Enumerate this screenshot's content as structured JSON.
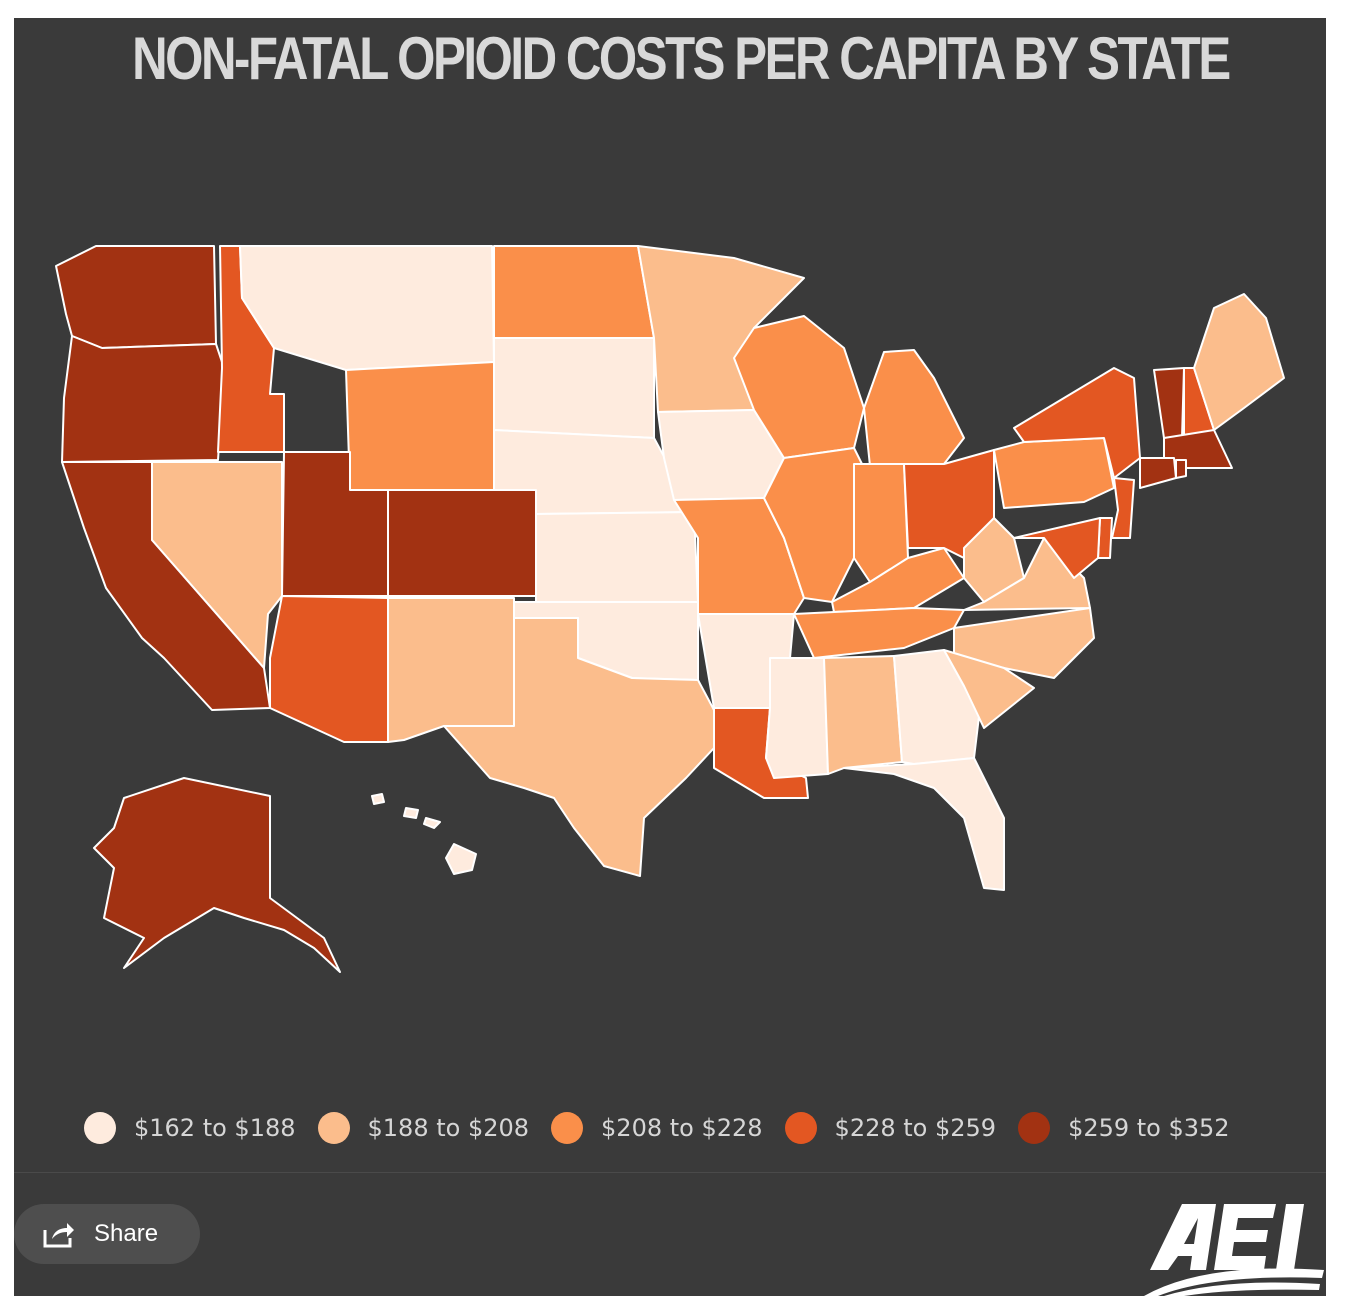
{
  "title": "NON-FATAL OPIOID COSTS PER CAPITA BY STATE",
  "legend": [
    {
      "label": "$162 to $188",
      "color": "#feebde"
    },
    {
      "label": "$188 to $208",
      "color": "#fbbd8c"
    },
    {
      "label": "$208 to $228",
      "color": "#fa8f4a"
    },
    {
      "label": "$228 to $259",
      "color": "#e35722"
    },
    {
      "label": "$259 to $352",
      "color": "#a23212"
    }
  ],
  "states": {
    "WA": 5,
    "OR": 5,
    "CA": 5,
    "ID": 4,
    "MT": 1,
    "WY": 3,
    "NV": 2,
    "UT": 5,
    "CO": 5,
    "AZ": 4,
    "NM": 2,
    "ND": 3,
    "SD": 1,
    "NE": 1,
    "KS": 1,
    "OK": 1,
    "TX": 2,
    "MN": 2,
    "IA": 1,
    "MO": 3,
    "AR": 1,
    "LA": 4,
    "WI": 3,
    "IL": 3,
    "MS": 1,
    "AL": 2,
    "MI": 3,
    "IN": 3,
    "KY": 3,
    "TN": 3,
    "GA": 1,
    "FL": 1,
    "OH": 4,
    "WV": 2,
    "VA": 2,
    "NC": 2,
    "SC": 2,
    "PA": 3,
    "NY": 4,
    "VT": 5,
    "NH": 4,
    "ME": 2,
    "MA": 5,
    "CT": 5,
    "RI": 5,
    "NJ": 4,
    "DE": 4,
    "MD": 4,
    "AK": 5,
    "HI": 1
  },
  "share": {
    "label": "Share",
    "icon": "share-icon"
  },
  "logo": {
    "name": "aei-logo"
  }
}
